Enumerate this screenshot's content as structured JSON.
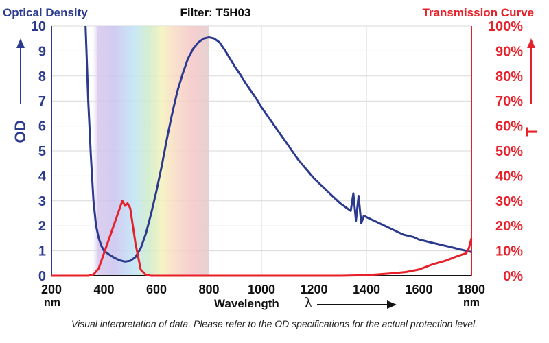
{
  "chart_data": {
    "type": "line",
    "title": "Filter: T5H03",
    "left_title": "Optical Density",
    "right_title": "Transmission Curve",
    "xlabel": "Wavelength",
    "xlabel_symbol": "λ",
    "x_unit": "nm",
    "xlim": [
      200,
      1800
    ],
    "x_ticks": [
      "200",
      "400",
      "600",
      "800",
      "1000",
      "1200",
      "1400",
      "1600",
      "1800"
    ],
    "left_axis": {
      "label": "OD",
      "range": [
        0,
        10
      ],
      "ticks": [
        "0",
        "1",
        "2",
        "3",
        "4",
        "5",
        "6",
        "7",
        "8",
        "9",
        "10"
      ]
    },
    "right_axis": {
      "label": "T",
      "range": [
        0,
        100
      ],
      "ticks": [
        "0%",
        "10%",
        "20%",
        "30%",
        "40%",
        "50%",
        "60%",
        "70%",
        "80%",
        "90%",
        "100%"
      ]
    },
    "visible_spectrum_band": [
      350,
      800
    ],
    "series": [
      {
        "name": "Optical Density",
        "axis": "left",
        "color": "#2b3a8f",
        "points": [
          [
            330,
            10
          ],
          [
            340,
            7
          ],
          [
            350,
            4.8
          ],
          [
            360,
            3
          ],
          [
            370,
            2
          ],
          [
            380,
            1.5
          ],
          [
            390,
            1.2
          ],
          [
            400,
            1.0
          ],
          [
            420,
            0.85
          ],
          [
            440,
            0.72
          ],
          [
            460,
            0.62
          ],
          [
            480,
            0.57
          ],
          [
            500,
            0.6
          ],
          [
            520,
            0.75
          ],
          [
            540,
            1.1
          ],
          [
            560,
            1.7
          ],
          [
            580,
            2.5
          ],
          [
            600,
            3.4
          ],
          [
            620,
            4.4
          ],
          [
            640,
            5.5
          ],
          [
            660,
            6.5
          ],
          [
            680,
            7.4
          ],
          [
            700,
            8.1
          ],
          [
            720,
            8.7
          ],
          [
            740,
            9.1
          ],
          [
            760,
            9.35
          ],
          [
            780,
            9.5
          ],
          [
            800,
            9.55
          ],
          [
            820,
            9.5
          ],
          [
            840,
            9.35
          ],
          [
            860,
            9.05
          ],
          [
            880,
            8.7
          ],
          [
            900,
            8.35
          ],
          [
            920,
            8.05
          ],
          [
            940,
            7.7
          ],
          [
            960,
            7.4
          ],
          [
            980,
            7.1
          ],
          [
            1000,
            6.75
          ],
          [
            1020,
            6.45
          ],
          [
            1040,
            6.15
          ],
          [
            1060,
            5.85
          ],
          [
            1080,
            5.55
          ],
          [
            1100,
            5.25
          ],
          [
            1120,
            4.95
          ],
          [
            1140,
            4.65
          ],
          [
            1160,
            4.4
          ],
          [
            1180,
            4.15
          ],
          [
            1200,
            3.9
          ],
          [
            1220,
            3.7
          ],
          [
            1240,
            3.5
          ],
          [
            1260,
            3.3
          ],
          [
            1280,
            3.1
          ],
          [
            1300,
            2.9
          ],
          [
            1320,
            2.75
          ],
          [
            1340,
            2.6
          ],
          [
            1350,
            3.3
          ],
          [
            1360,
            2.2
          ],
          [
            1370,
            3.2
          ],
          [
            1380,
            2.1
          ],
          [
            1390,
            2.4
          ],
          [
            1400,
            2.35
          ],
          [
            1420,
            2.25
          ],
          [
            1440,
            2.15
          ],
          [
            1460,
            2.05
          ],
          [
            1480,
            1.95
          ],
          [
            1500,
            1.85
          ],
          [
            1520,
            1.75
          ],
          [
            1540,
            1.65
          ],
          [
            1560,
            1.6
          ],
          [
            1580,
            1.55
          ],
          [
            1600,
            1.45
          ],
          [
            1620,
            1.4
          ],
          [
            1640,
            1.35
          ],
          [
            1660,
            1.3
          ],
          [
            1680,
            1.25
          ],
          [
            1700,
            1.2
          ],
          [
            1720,
            1.15
          ],
          [
            1740,
            1.1
          ],
          [
            1760,
            1.05
          ],
          [
            1780,
            1.0
          ],
          [
            1800,
            0.95
          ]
        ]
      },
      {
        "name": "Transmission Curve",
        "axis": "right",
        "color": "#e8202a",
        "points": [
          [
            200,
            0
          ],
          [
            340,
            0
          ],
          [
            360,
            0.5
          ],
          [
            380,
            3
          ],
          [
            400,
            9
          ],
          [
            420,
            15
          ],
          [
            440,
            21
          ],
          [
            460,
            27
          ],
          [
            470,
            30
          ],
          [
            480,
            28
          ],
          [
            490,
            29
          ],
          [
            500,
            27
          ],
          [
            520,
            13
          ],
          [
            540,
            2.5
          ],
          [
            560,
            0.3
          ],
          [
            580,
            0
          ],
          [
            1300,
            0
          ],
          [
            1400,
            0.2
          ],
          [
            1500,
            1
          ],
          [
            1550,
            1.5
          ],
          [
            1600,
            2.5
          ],
          [
            1650,
            4.5
          ],
          [
            1700,
            6
          ],
          [
            1750,
            8
          ],
          [
            1780,
            9
          ],
          [
            1790,
            11
          ],
          [
            1800,
            15
          ]
        ]
      }
    ]
  },
  "footnote": "Visual interpretation of data. Please refer to the OD specifications for the actual protection level."
}
